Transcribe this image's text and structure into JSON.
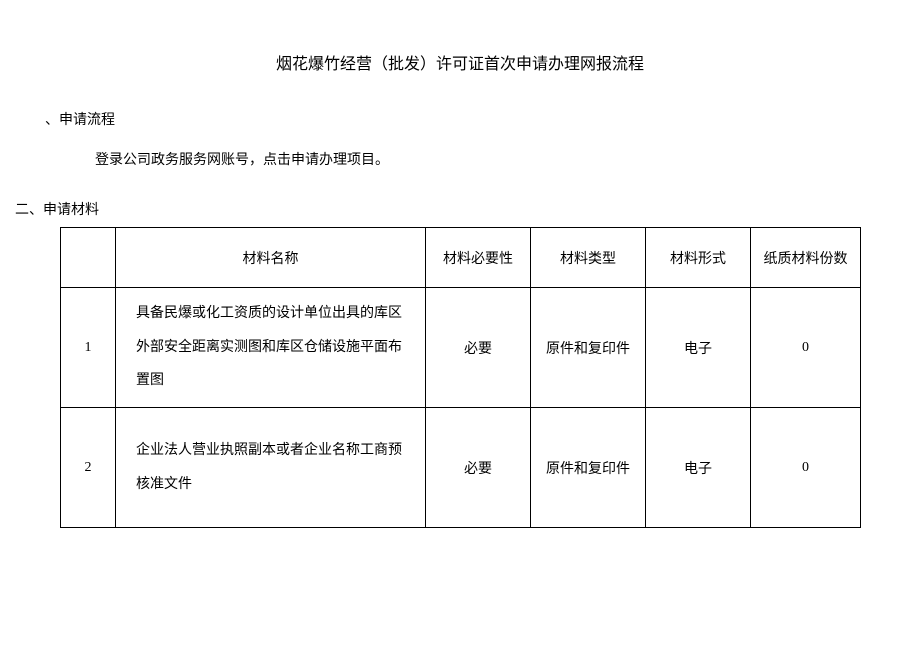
{
  "title": "烟花爆竹经营（批发）许可证首次申请办理网报流程",
  "section1": {
    "heading": "、申请流程",
    "body": "登录公司政务服务网账号，点击申请办理项目。"
  },
  "section2": {
    "heading": "二、申请材料"
  },
  "table": {
    "columns": [
      "材料名称",
      "材料必要性",
      "材料类型",
      "材料形式",
      "纸质材料份数"
    ],
    "rows": [
      {
        "idx": "1",
        "name": "具备民爆或化工资质的设计单位出具的库区外部安全距离实测图和库区仓储设施平面布置图",
        "required": "必要",
        "type": "原件和复印件",
        "form": "电子",
        "count": "0"
      },
      {
        "idx": "2",
        "name": "企业法人营业执照副本或者企业名称工商预核准文件",
        "required": "必要",
        "type": "原件和复印件",
        "form": "电子",
        "count": "0"
      }
    ]
  }
}
